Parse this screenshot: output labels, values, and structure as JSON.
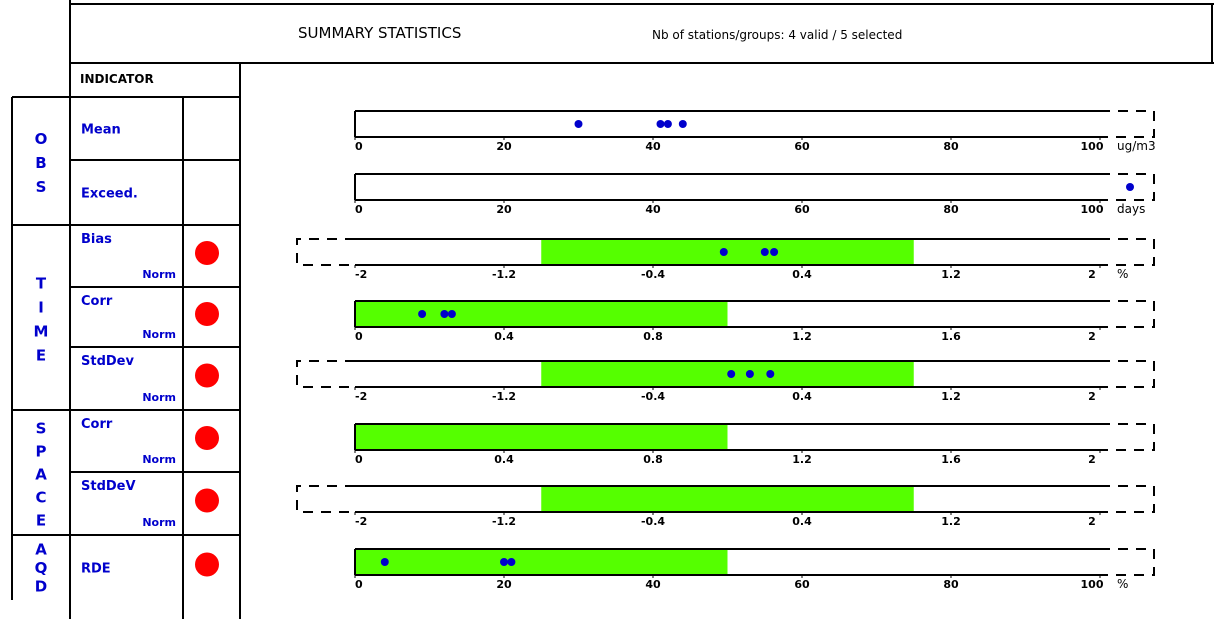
{
  "header": {
    "title": "SUMMARY STATISTICS",
    "stations": "Nb of stations/groups: 4 valid / 5 selected",
    "indicator": "INDICATOR"
  },
  "sections": [
    {
      "label": "OBS",
      "rows": [
        0,
        1
      ]
    },
    {
      "label": "TIME",
      "rows": [
        2,
        3,
        4
      ]
    },
    {
      "label": "SPACE",
      "rows": [
        5,
        6
      ]
    },
    {
      "label": "AQD",
      "rows": [
        7
      ]
    }
  ],
  "colors": {
    "grid": "#000000",
    "text_blue": "#0000cc",
    "point": "#0000cc",
    "target_zone": "#55ff00",
    "status_fail": "#ff0000"
  },
  "chart_data": {
    "type": "scatter",
    "title": "SUMMARY STATISTICS",
    "rows": [
      {
        "name": "Mean",
        "norm": "",
        "status": null,
        "axis": [
          0,
          100
        ],
        "ticks": [
          "0",
          "20",
          "40",
          "60",
          "80",
          "100"
        ],
        "unit": "ug/m3",
        "dashed_left": false,
        "green": null,
        "values": [
          30,
          41,
          42,
          44
        ]
      },
      {
        "name": "Exceed.",
        "norm": "",
        "status": null,
        "axis": [
          0,
          100
        ],
        "ticks": [
          "0",
          "20",
          "40",
          "60",
          "80",
          "100"
        ],
        "unit": "days",
        "dashed_left": false,
        "green": null,
        "values": [
          110
        ]
      },
      {
        "name": "Bias",
        "norm": "Norm",
        "status": "red",
        "axis": [
          -2,
          2
        ],
        "ticks": [
          "-2",
          "-1.2",
          "-0.4",
          "0.4",
          "1.2",
          "2"
        ],
        "unit": "%",
        "dashed_left": true,
        "green": [
          -1,
          1
        ],
        "values": [
          -0.02,
          0.2,
          0.25
        ]
      },
      {
        "name": "Corr",
        "norm": "Norm",
        "status": "red",
        "axis": [
          0,
          2
        ],
        "ticks": [
          "0",
          "0.4",
          "0.8",
          "1.2",
          "1.6",
          "2"
        ],
        "unit": "",
        "dashed_left": false,
        "green": [
          0,
          1
        ],
        "values": [
          0.18,
          0.24,
          0.26
        ]
      },
      {
        "name": "StdDev",
        "norm": "Norm",
        "status": "red",
        "axis": [
          -2,
          2
        ],
        "ticks": [
          "-2",
          "-1.2",
          "-0.4",
          "0.4",
          "1.2",
          "2"
        ],
        "unit": "",
        "dashed_left": true,
        "green": [
          -1,
          1
        ],
        "values": [
          0.02,
          0.12,
          0.23
        ]
      },
      {
        "name": "Corr",
        "norm": "Norm",
        "status": "red",
        "axis": [
          0,
          2
        ],
        "ticks": [
          "0",
          "0.4",
          "0.8",
          "1.2",
          "1.6",
          "2"
        ],
        "unit": "",
        "dashed_left": false,
        "green": [
          0,
          1
        ],
        "values": []
      },
      {
        "name": "StdDeV",
        "norm": "Norm",
        "status": "red",
        "axis": [
          -2,
          2
        ],
        "ticks": [
          "-2",
          "-1.2",
          "-0.4",
          "0.4",
          "1.2",
          "2"
        ],
        "unit": "",
        "dashed_left": true,
        "green": [
          -1,
          1
        ],
        "values": []
      },
      {
        "name": "RDE",
        "norm": "",
        "status": "red",
        "axis": [
          0,
          100
        ],
        "ticks": [
          "0",
          "20",
          "40",
          "60",
          "80",
          "100"
        ],
        "unit": "%",
        "dashed_left": false,
        "green": [
          0,
          50
        ],
        "values": [
          4,
          20,
          21
        ]
      }
    ]
  }
}
